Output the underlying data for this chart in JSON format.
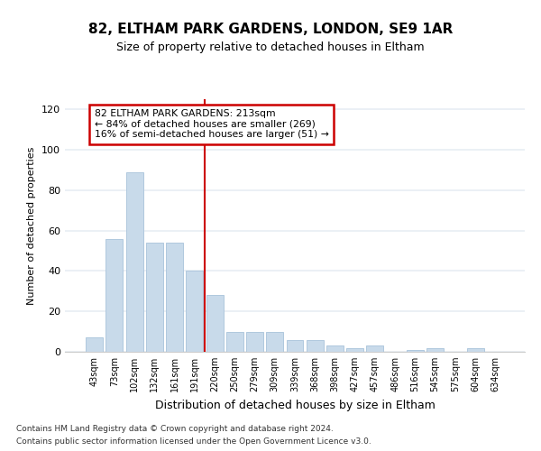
{
  "title1": "82, ELTHAM PARK GARDENS, LONDON, SE9 1AR",
  "title2": "Size of property relative to detached houses in Eltham",
  "xlabel": "Distribution of detached houses by size in Eltham",
  "ylabel": "Number of detached properties",
  "categories": [
    "43sqm",
    "73sqm",
    "102sqm",
    "132sqm",
    "161sqm",
    "191sqm",
    "220sqm",
    "250sqm",
    "279sqm",
    "309sqm",
    "339sqm",
    "368sqm",
    "398sqm",
    "427sqm",
    "457sqm",
    "486sqm",
    "516sqm",
    "545sqm",
    "575sqm",
    "604sqm",
    "634sqm"
  ],
  "values": [
    7,
    56,
    89,
    54,
    54,
    40,
    28,
    10,
    10,
    10,
    6,
    6,
    3,
    2,
    3,
    0,
    1,
    2,
    0,
    2
  ],
  "bar_color": "#c8daea",
  "bar_edgecolor": "#b0c8de",
  "vline_x_index": 6,
  "vline_color": "#cc0000",
  "annotation_text": "82 ELTHAM PARK GARDENS: 213sqm\n← 84% of detached houses are smaller (269)\n16% of semi-detached houses are larger (51) →",
  "annotation_box_color": "#ffffff",
  "annotation_box_edgecolor": "#cc0000",
  "ylim": [
    0,
    125
  ],
  "yticks": [
    0,
    20,
    40,
    60,
    80,
    100,
    120
  ],
  "footer1": "Contains HM Land Registry data © Crown copyright and database right 2024.",
  "footer2": "Contains public sector information licensed under the Open Government Licence v3.0.",
  "bg_color": "#ffffff",
  "plot_bg_color": "#ffffff",
  "grid_color": "#e8eef4",
  "title1_fontsize": 11,
  "title2_fontsize": 9
}
